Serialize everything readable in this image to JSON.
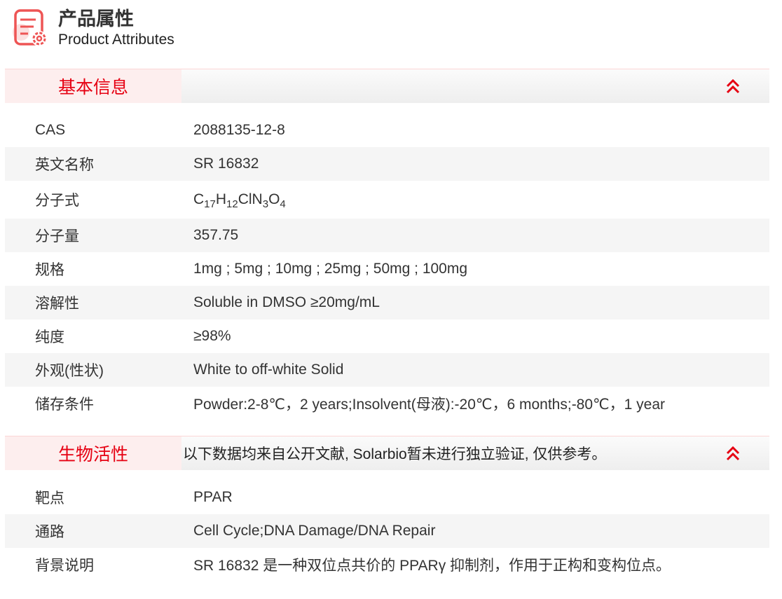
{
  "header": {
    "title_cn": "产品属性",
    "title_en": "Product Attributes",
    "icon": "document-gear-icon"
  },
  "colors": {
    "accent": "#e60012",
    "section_label_bg": "#fdeeee",
    "alt_row_bg": "#f5f5f5"
  },
  "basic": {
    "label": "基本信息",
    "toggle_icon": "double-chevron-up-icon",
    "rows": [
      {
        "key": "CAS",
        "value": "2088135-12-8"
      },
      {
        "key": "英文名称",
        "value": "SR 16832"
      },
      {
        "key": "分子式",
        "formula": [
          {
            "t": "C"
          },
          {
            "t": "17",
            "sub": true
          },
          {
            "t": "H"
          },
          {
            "t": "12",
            "sub": true
          },
          {
            "t": "ClN"
          },
          {
            "t": "3",
            "sub": true
          },
          {
            "t": "O"
          },
          {
            "t": "4",
            "sub": true
          }
        ]
      },
      {
        "key": "分子量",
        "value": "357.75"
      },
      {
        "key": "规格",
        "value": "1mg ; 5mg ; 10mg ; 25mg ; 50mg ; 100mg"
      },
      {
        "key": "溶解性",
        "value": "Soluble in DMSO ≥20mg/mL"
      },
      {
        "key": "纯度",
        "value": "≥98%"
      },
      {
        "key": "外观(性状)",
        "value": "White to off-white Solid"
      },
      {
        "key": "储存条件",
        "value": "Powder:2-8℃，2 years;Insolvent(母液):-20℃，6 months;-80℃，1 year"
      }
    ]
  },
  "bio": {
    "label": "生物活性",
    "note": "以下数据均来自公开文献, Solarbio暂未进行独立验证, 仅供参考。",
    "toggle_icon": "double-chevron-up-icon",
    "rows": [
      {
        "key": "靶点",
        "value": "PPAR"
      },
      {
        "key": "通路",
        "value": "Cell Cycle;DNA Damage/DNA Repair"
      },
      {
        "key": "背景说明",
        "value": "SR 16832 是一种双位点共价的 PPARγ 抑制剂，作用于正构和变构位点。"
      }
    ]
  }
}
